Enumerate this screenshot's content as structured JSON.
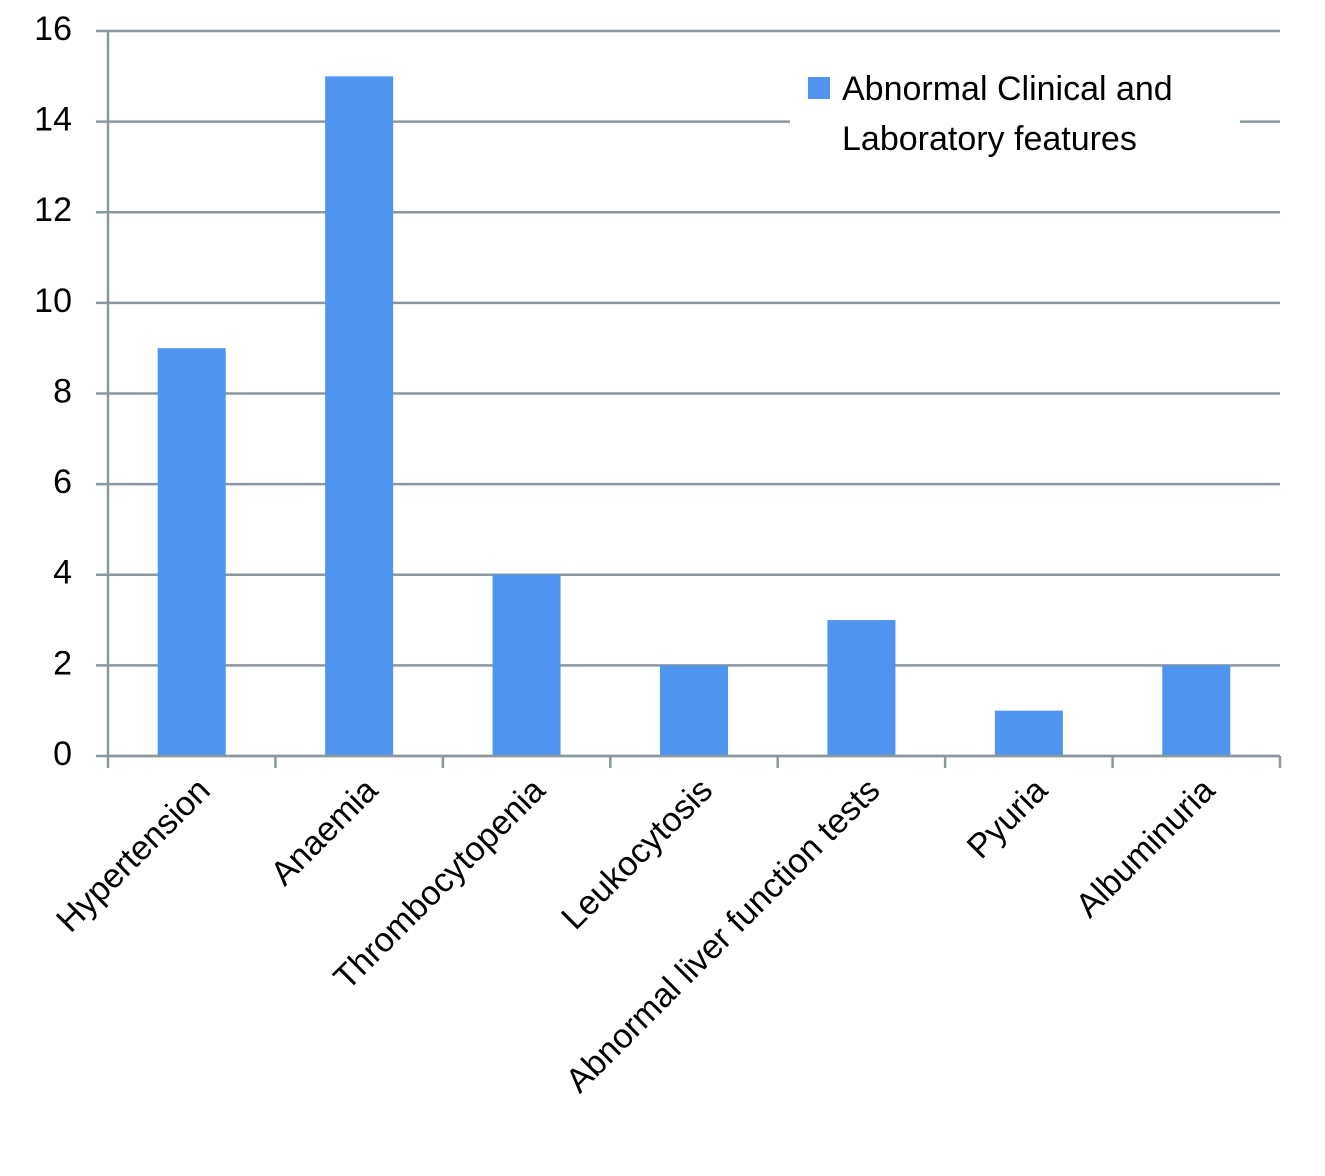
{
  "chart_data": {
    "type": "bar",
    "categories": [
      "Hypertension",
      "Anaemia",
      "Thrombocytopenia",
      "Leukocytosis",
      "Abnormal liver function tests",
      "Pyuria",
      "Albuminuria"
    ],
    "series": [
      {
        "name": "Abnormal Clinical and Laboratory features",
        "color": "#4f94ef",
        "values": [
          9,
          15,
          4,
          2,
          3,
          1,
          2
        ]
      }
    ],
    "ylim": [
      0,
      16
    ],
    "yticks": [
      0,
      2,
      4,
      6,
      8,
      10,
      12,
      14,
      16
    ],
    "grid": true,
    "legend": "upper right"
  }
}
